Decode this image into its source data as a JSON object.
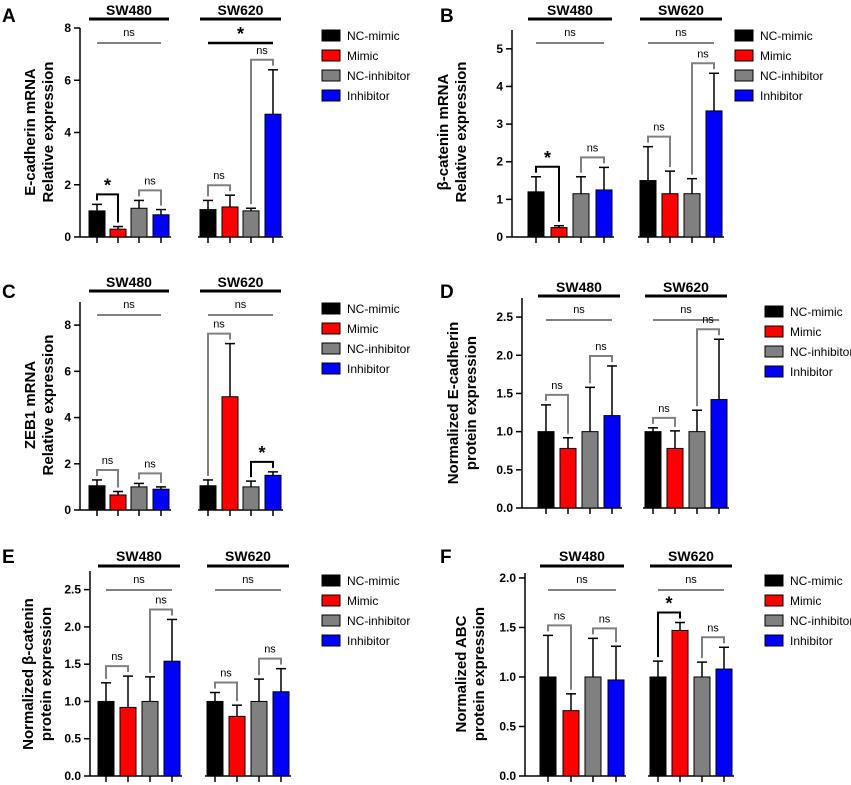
{
  "series_names": [
    "NC-mimic",
    "Mimic",
    "NC-inhibitor",
    "Inhibitor"
  ],
  "series_colors": [
    "#000000",
    "#ff0000",
    "#808080",
    "#0000ff"
  ],
  "bracket_color": "#808080",
  "chart_data": [
    {
      "type": "bar",
      "panel": "A",
      "ylabel": [
        "E-cadherin mRNA",
        "Relative expression"
      ],
      "groups": [
        "SW480",
        "SW620"
      ],
      "series": [
        {
          "name": "NC-mimic",
          "values": [
            1.0,
            1.05
          ],
          "errors": [
            0.25,
            0.35
          ]
        },
        {
          "name": "Mimic",
          "values": [
            0.3,
            1.15
          ],
          "errors": [
            0.1,
            0.45
          ]
        },
        {
          "name": "NC-inhibitor",
          "values": [
            1.1,
            1.0
          ],
          "errors": [
            0.3,
            0.1
          ]
        },
        {
          "name": "Inhibitor",
          "values": [
            0.85,
            4.7
          ],
          "errors": [
            0.2,
            1.7
          ]
        }
      ],
      "ylim": [
        0,
        8
      ],
      "yticks": [
        0,
        2,
        4,
        6,
        8
      ],
      "yticklabels": [
        "0",
        "2",
        "4",
        "6",
        "8"
      ],
      "group_sig": [
        "ns",
        "*"
      ],
      "pair_sig": [
        [
          "*",
          "ns"
        ],
        [
          "ns",
          "ns"
        ]
      ]
    },
    {
      "type": "bar",
      "panel": "B",
      "ylabel": [
        "β-catenin mRNA",
        "Relative expression"
      ],
      "groups": [
        "SW480",
        "SW620"
      ],
      "series": [
        {
          "name": "NC-mimic",
          "values": [
            1.2,
            1.5
          ],
          "errors": [
            0.4,
            0.9
          ]
        },
        {
          "name": "Mimic",
          "values": [
            0.25,
            1.15
          ],
          "errors": [
            0.05,
            0.6
          ]
        },
        {
          "name": "NC-inhibitor",
          "values": [
            1.15,
            1.15
          ],
          "errors": [
            0.45,
            0.4
          ]
        },
        {
          "name": "Inhibitor",
          "values": [
            1.25,
            3.35
          ],
          "errors": [
            0.6,
            1.0
          ]
        }
      ],
      "ylim": [
        0,
        5.5
      ],
      "yticks": [
        0,
        1,
        2,
        3,
        4,
        5
      ],
      "yticklabels": [
        "0",
        "1",
        "2",
        "3",
        "4",
        "5"
      ],
      "group_sig": [
        "ns",
        "ns"
      ],
      "pair_sig": [
        [
          "*",
          "ns"
        ],
        [
          "ns",
          "ns"
        ]
      ]
    },
    {
      "type": "bar",
      "panel": "C",
      "ylabel": [
        "ZEB1 mRNA",
        "Relative expression"
      ],
      "groups": [
        "SW480",
        "SW620"
      ],
      "series": [
        {
          "name": "NC-mimic",
          "values": [
            1.05,
            1.05
          ],
          "errors": [
            0.25,
            0.25
          ]
        },
        {
          "name": "Mimic",
          "values": [
            0.65,
            4.9
          ],
          "errors": [
            0.15,
            2.3
          ]
        },
        {
          "name": "NC-inhibitor",
          "values": [
            1.0,
            1.0
          ],
          "errors": [
            0.15,
            0.25
          ]
        },
        {
          "name": "Inhibitor",
          "values": [
            0.9,
            1.5
          ],
          "errors": [
            0.1,
            0.15
          ]
        }
      ],
      "ylim": [
        0,
        9
      ],
      "yticks": [
        0,
        2,
        4,
        6,
        8
      ],
      "yticklabels": [
        "0",
        "2",
        "4",
        "6",
        "8"
      ],
      "group_sig": [
        "ns",
        "ns"
      ],
      "pair_sig": [
        [
          "ns",
          "ns"
        ],
        [
          "ns",
          "*"
        ]
      ]
    },
    {
      "type": "bar",
      "panel": "D",
      "ylabel": [
        "Normalized E-cadherin",
        "protein expression"
      ],
      "groups": [
        "SW480",
        "SW620"
      ],
      "series": [
        {
          "name": "NC-mimic",
          "values": [
            1.0,
            1.0
          ],
          "errors": [
            0.35,
            0.05
          ]
        },
        {
          "name": "Mimic",
          "values": [
            0.78,
            0.78
          ],
          "errors": [
            0.14,
            0.23
          ]
        },
        {
          "name": "NC-inhibitor",
          "values": [
            1.0,
            1.0
          ],
          "errors": [
            0.58,
            0.28
          ]
        },
        {
          "name": "Inhibitor",
          "values": [
            1.21,
            1.42
          ],
          "errors": [
            0.65,
            0.79
          ]
        }
      ],
      "ylim": [
        0,
        2.75
      ],
      "yticks": [
        0,
        0.5,
        1.0,
        1.5,
        2.0,
        2.5
      ],
      "yticklabels": [
        "0.0",
        "0.5",
        "1.0",
        "1.5",
        "2.0",
        "2.5"
      ],
      "group_sig": [
        "ns",
        "ns"
      ],
      "pair_sig": [
        [
          "ns",
          "ns"
        ],
        [
          "ns",
          "ns"
        ]
      ]
    },
    {
      "type": "bar",
      "panel": "E",
      "ylabel": [
        "Normalized β-catenin",
        "protein expression"
      ],
      "groups": [
        "SW480",
        "SW620"
      ],
      "series": [
        {
          "name": "NC-mimic",
          "values": [
            1.0,
            1.0
          ],
          "errors": [
            0.25,
            0.12
          ]
        },
        {
          "name": "Mimic",
          "values": [
            0.92,
            0.8
          ],
          "errors": [
            0.42,
            0.15
          ]
        },
        {
          "name": "NC-inhibitor",
          "values": [
            1.0,
            1.0
          ],
          "errors": [
            0.33,
            0.3
          ]
        },
        {
          "name": "Inhibitor",
          "values": [
            1.54,
            1.13
          ],
          "errors": [
            0.56,
            0.31
          ]
        }
      ],
      "ylim": [
        0,
        2.75
      ],
      "yticks": [
        0,
        0.5,
        1.0,
        1.5,
        2.0,
        2.5
      ],
      "yticklabels": [
        "0.0",
        "0.5",
        "1.0",
        "1.5",
        "2.0",
        "2.5"
      ],
      "group_sig": [
        "ns",
        "ns"
      ],
      "pair_sig": [
        [
          "ns",
          "ns"
        ],
        [
          "ns",
          "ns"
        ]
      ]
    },
    {
      "type": "bar",
      "panel": "F",
      "ylabel": [
        "Normalized ABC",
        "protein expression"
      ],
      "groups": [
        "SW480",
        "SW620"
      ],
      "series": [
        {
          "name": "NC-mimic",
          "values": [
            1.0,
            1.0
          ],
          "errors": [
            0.42,
            0.16
          ]
        },
        {
          "name": "Mimic",
          "values": [
            0.66,
            1.47
          ],
          "errors": [
            0.17,
            0.08
          ]
        },
        {
          "name": "NC-inhibitor",
          "values": [
            1.0,
            1.0
          ],
          "errors": [
            0.39,
            0.15
          ]
        },
        {
          "name": "Inhibitor",
          "values": [
            0.97,
            1.08
          ],
          "errors": [
            0.34,
            0.22
          ]
        }
      ],
      "ylim": [
        0,
        2.05
      ],
      "yticks": [
        0,
        0.5,
        1.0,
        1.5,
        2.0
      ],
      "yticklabels": [
        "0.0",
        "0.5",
        "1.0",
        "1.5",
        "2.0"
      ],
      "group_sig": [
        "ns",
        "ns"
      ],
      "pair_sig": [
        [
          "ns",
          "ns"
        ],
        [
          "*",
          "ns"
        ]
      ]
    }
  ]
}
